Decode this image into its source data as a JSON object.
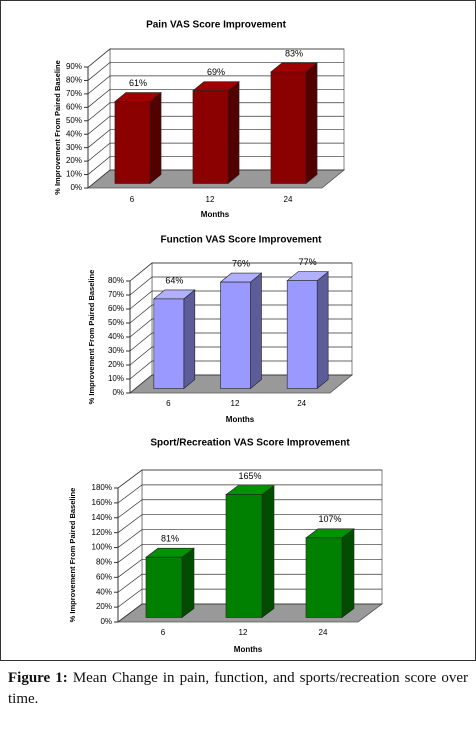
{
  "chart_data": [
    {
      "type": "bar3d",
      "title": "Pain VAS  Score Improvement",
      "categories": [
        "6",
        "12",
        "24"
      ],
      "values": [
        61,
        69,
        83
      ],
      "value_labels": [
        "61%",
        "69%",
        "83%"
      ],
      "color": "#8b0000",
      "xlabel": "Months",
      "ylabel": "% Improvement From Paired Baseline",
      "ylim": [
        0,
        90
      ],
      "yticks": [
        {
          "value": 0,
          "label": "0%"
        },
        {
          "value": 10,
          "label": "10%"
        },
        {
          "value": 20,
          "label": "20%"
        },
        {
          "value": 30,
          "label": "30%"
        },
        {
          "value": 40,
          "label": "40%"
        },
        {
          "value": 50,
          "label": "50%"
        },
        {
          "value": 60,
          "label": "60%"
        },
        {
          "value": 70,
          "label": "70%"
        },
        {
          "value": 80,
          "label": "80%"
        },
        {
          "value": 90,
          "label": "90%"
        }
      ],
      "grid": true
    },
    {
      "type": "bar3d",
      "title": "Function VAS  Score Improvement",
      "categories": [
        "6",
        "12",
        "24"
      ],
      "values": [
        64,
        76,
        77
      ],
      "value_labels": [
        "64%",
        "76%",
        "77%"
      ],
      "color": "#9999ff",
      "xlabel": "Months",
      "ylabel": "% Improvement From Paired Baseline",
      "ylim": [
        0,
        80
      ],
      "yticks": [
        {
          "value": 0,
          "label": "0%"
        },
        {
          "value": 10,
          "label": "10%"
        },
        {
          "value": 20,
          "label": "20%"
        },
        {
          "value": 30,
          "label": "30%"
        },
        {
          "value": 40,
          "label": "40%"
        },
        {
          "value": 50,
          "label": "50%"
        },
        {
          "value": 60,
          "label": "60%"
        },
        {
          "value": 70,
          "label": "70%"
        },
        {
          "value": 80,
          "label": "80%"
        }
      ],
      "grid": true
    },
    {
      "type": "bar3d",
      "title": "Sport/Recreation VAS Score Improvement",
      "categories": [
        "6",
        "12",
        "24"
      ],
      "values": [
        81,
        165,
        107
      ],
      "value_labels": [
        "81%",
        "165%",
        "107%"
      ],
      "color": "#008000",
      "xlabel": "Months",
      "ylabel": "% Improvement From Paired Baseline",
      "ylim": [
        0,
        180
      ],
      "yticks": [
        {
          "value": 0,
          "label": "0%"
        },
        {
          "value": 20,
          "label": "20%"
        },
        {
          "value": 40,
          "label": "40%"
        },
        {
          "value": 60,
          "label": "60%"
        },
        {
          "value": 80,
          "label": "80%"
        },
        {
          "value": 100,
          "label": "100%"
        },
        {
          "value": 120,
          "label": "120%"
        },
        {
          "value": 140,
          "label": "140%"
        },
        {
          "value": 160,
          "label": "160%"
        },
        {
          "value": 180,
          "label": "180%"
        }
      ],
      "grid": true
    }
  ],
  "caption": {
    "label": "Figure 1:",
    "text": "Mean Change in pain, function, and sports/recreation score over time."
  }
}
